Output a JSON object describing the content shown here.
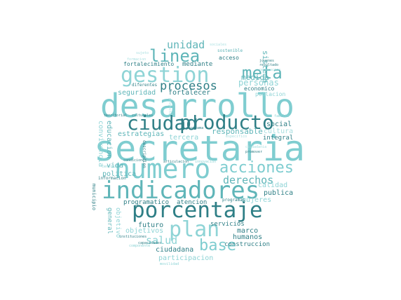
{
  "words": [
    {
      "text": "secretaria",
      "color": "#7fcdd0"
    },
    {
      "text": "desarrollo",
      "color": "#7fcdd0"
    },
    {
      "text": "numero",
      "color": "#7fcdd0"
    },
    {
      "text": "indicadores",
      "color": "#5fb5b8"
    },
    {
      "text": "porcentaje",
      "color": "#2f7f86"
    },
    {
      "text": "producto",
      "color": "#2f7f86"
    },
    {
      "text": "ciudad",
      "color": "#2f7f86"
    },
    {
      "text": "gestion",
      "color": "#8fd4d6"
    },
    {
      "text": "plan",
      "color": "#8fd4d6"
    },
    {
      "text": "acciones",
      "color": "#7fcdd0"
    },
    {
      "text": "linea",
      "color": "#5fb5b8"
    },
    {
      "text": "meta",
      "color": "#5fb5b8"
    },
    {
      "text": "base",
      "color": "#7fcdd0"
    },
    {
      "text": "procesos",
      "color": "#2f7f86"
    },
    {
      "text": "unidad",
      "color": "#5fb5b8"
    },
    {
      "text": "derechos",
      "color": "#5fb5b8"
    },
    {
      "text": "salud",
      "color": "#8fd4d6"
    },
    {
      "text": "personas",
      "color": "#8fd4d6"
    },
    {
      "text": "responsable",
      "color": "#5fb5b8"
    },
    {
      "text": "sistema",
      "color": "#5fb5b8"
    },
    {
      "text": "medida",
      "color": "#5fb5b8"
    },
    {
      "text": "fortalecer",
      "color": "#2f7f86"
    },
    {
      "text": "seguridad",
      "color": "#5fb5b8"
    },
    {
      "text": "estrategias",
      "color": "#5fb5b8"
    },
    {
      "text": "tercera",
      "color": "#8fd4d6"
    },
    {
      "text": "social",
      "color": "#2f7f86"
    },
    {
      "text": "cultura",
      "color": "#a8dfe0"
    },
    {
      "text": "integral",
      "color": "#2f7f86"
    },
    {
      "text": "educacion",
      "color": "#5fb5b8"
    },
    {
      "text": "convivencia",
      "color": "#8fd4d6"
    },
    {
      "text": "politica",
      "color": "#5fb5b8"
    },
    {
      "text": "vida",
      "color": "#5fb5b8"
    },
    {
      "text": "publica",
      "color": "#2f7f86"
    },
    {
      "text": "calidad",
      "color": "#8fd4d6"
    },
    {
      "text": "mujeres",
      "color": "#8fd4d6"
    },
    {
      "text": "programatico",
      "color": "#2f7f86"
    },
    {
      "text": "atencion",
      "color": "#2f7f86"
    },
    {
      "text": "futuro",
      "color": "#2f7f86"
    },
    {
      "text": "objetivos",
      "color": "#8fd4d6"
    },
    {
      "text": "servicios",
      "color": "#2f7f86"
    },
    {
      "text": "marco",
      "color": "#2f7f86"
    },
    {
      "text": "humanos",
      "color": "#2f7f86"
    },
    {
      "text": "construccion",
      "color": "#2f7f86"
    },
    {
      "text": "ciudadana",
      "color": "#2f7f86"
    },
    {
      "text": "participacion",
      "color": "#8fd4d6"
    },
    {
      "text": "fortalecimiento",
      "color": "#2f7f86"
    },
    {
      "text": "mediante",
      "color": "#2f7f86"
    },
    {
      "text": "acceso",
      "color": "#2f7f86"
    },
    {
      "text": "sostenible",
      "color": "#5fb5b8"
    },
    {
      "text": "economico",
      "color": "#2f7f86"
    },
    {
      "text": "poblacion",
      "color": "#8fd4d6"
    },
    {
      "text": "general",
      "color": "#5fb5b8"
    },
    {
      "text": "objetivo",
      "color": "#8fd4d6"
    },
    {
      "text": "municipio",
      "color": "#2f7f86"
    },
    {
      "text": "generacion",
      "color": "#a8dfe0"
    },
    {
      "text": "diferentes",
      "color": "#2f7f86"
    },
    {
      "text": "programas",
      "color": "#2f7f86"
    },
    {
      "text": "informacion",
      "color": "#2f7f86"
    },
    {
      "text": "articulacion",
      "color": "#2f7f86"
    },
    {
      "text": "capacidades",
      "color": "#2f7f86"
    },
    {
      "text": "movilidad",
      "color": "#8fd4d6"
    },
    {
      "text": "territorial",
      "color": "#2f7f86"
    },
    {
      "text": "culturales",
      "color": "#2f7f86"
    },
    {
      "text": "familia",
      "color": "#8fd4d6"
    },
    {
      "text": "resultado",
      "color": "#2f7f86"
    },
    {
      "text": "jovenes",
      "color": "#2f7f86"
    },
    {
      "text": "formacion",
      "color": "#a8dfe0"
    },
    {
      "text": "descripcion",
      "color": "#2f7f86"
    },
    {
      "text": "condiciones",
      "color": "#2f7f86"
    },
    {
      "text": "central",
      "color": "#8fd4d6"
    },
    {
      "text": "programa",
      "color": "#2f7f86"
    },
    {
      "text": "promover",
      "color": "#2f7f86"
    },
    {
      "text": "ciudadania",
      "color": "#a8dfe0"
    },
    {
      "text": "especifico",
      "color": "#a8dfe0"
    },
    {
      "text": "instituciones",
      "color": "#2f7f86"
    },
    {
      "text": "componente",
      "color": "#8fd4d6"
    },
    {
      "text": "sociales",
      "color": "#a8dfe0"
    },
    {
      "text": "sujeto",
      "color": "#a8dfe0"
    },
    {
      "text": "innovacion",
      "color": "#8fd4d6"
    },
    {
      "text": "proyecto",
      "color": "#a8dfe0"
    }
  ]
}
